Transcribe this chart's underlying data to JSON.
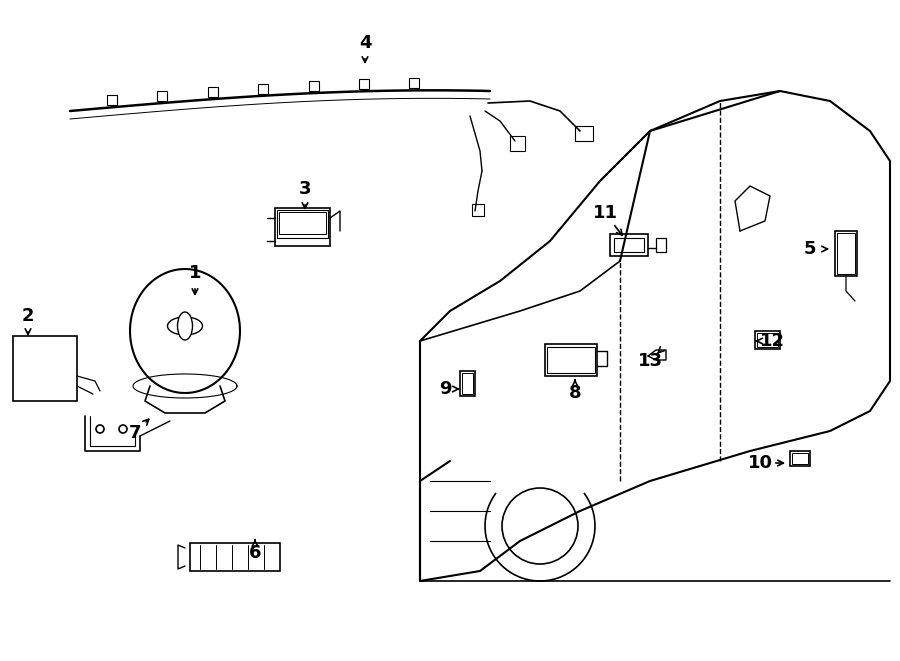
{
  "bg_color": "#ffffff",
  "line_color": "#000000",
  "line_width": 1.2,
  "fig_width": 9.0,
  "fig_height": 6.61
}
